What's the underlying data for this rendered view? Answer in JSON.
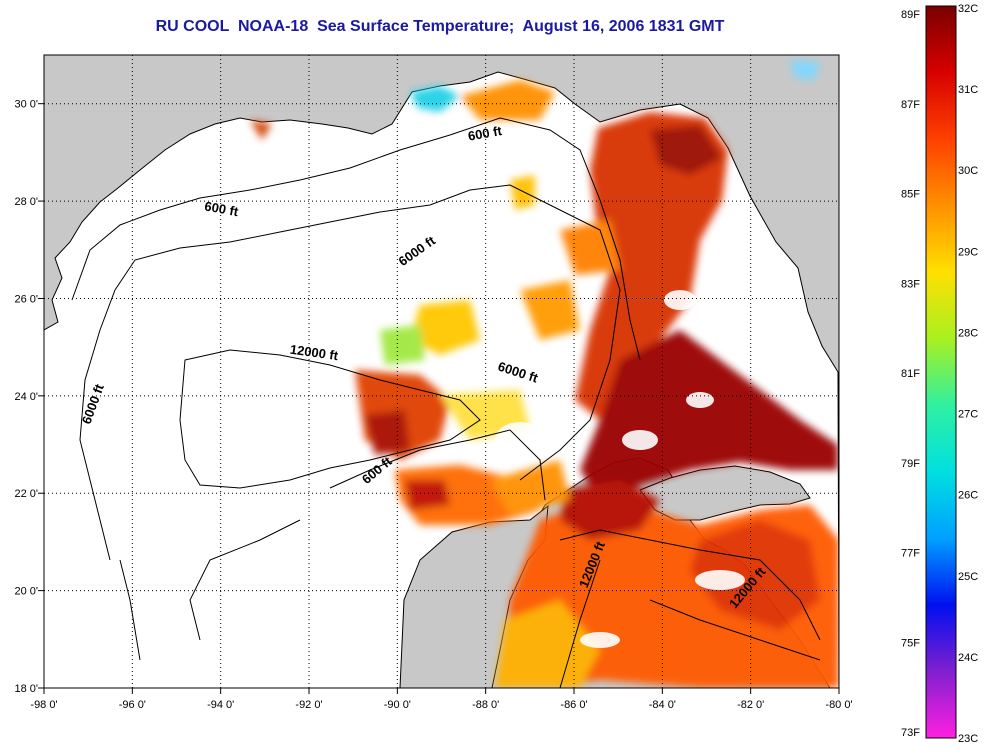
{
  "title": "RU COOL  NOAA-18  Sea Surface Temperature;  August 16, 2006 1831 GMT",
  "map": {
    "lon_range": [
      -98,
      -80
    ],
    "lat_range": [
      18,
      31
    ],
    "lon_ticks": [
      {
        "value": -98,
        "label": "-98 0'"
      },
      {
        "value": -96,
        "label": "-96 0'"
      },
      {
        "value": -94,
        "label": "-94 0'"
      },
      {
        "value": -92,
        "label": "-92 0'"
      },
      {
        "value": -90,
        "label": "-90 0'"
      },
      {
        "value": -88,
        "label": "-88 0'"
      },
      {
        "value": -86,
        "label": "-86 0'"
      },
      {
        "value": -84,
        "label": "-84 0'"
      },
      {
        "value": -82,
        "label": "-82 0'"
      },
      {
        "value": -80,
        "label": "-80 0'"
      }
    ],
    "lat_ticks": [
      {
        "value": 30,
        "label": "30 0'"
      },
      {
        "value": 28,
        "label": "28 0'"
      },
      {
        "value": 26,
        "label": "26 0'"
      },
      {
        "value": 24,
        "label": "24 0'"
      },
      {
        "value": 22,
        "label": "22 0'"
      },
      {
        "value": 20,
        "label": "20 0'"
      },
      {
        "value": 18,
        "label": "18 0'"
      }
    ],
    "grid": "dotted",
    "colors": {
      "land": "#c8c8c8",
      "no_data": "#ffffff",
      "frame": "#000000"
    },
    "contour_labels": [
      {
        "text": "600 ft",
        "lon": -94.0,
        "lat": 27.75,
        "angle": 10
      },
      {
        "text": "600 ft",
        "lon": -88.0,
        "lat": 29.3,
        "angle": -10
      },
      {
        "text": "6000 ft",
        "lon": -89.5,
        "lat": 26.9,
        "angle": -35
      },
      {
        "text": "12000 ft",
        "lon": -91.9,
        "lat": 24.8,
        "angle": 8
      },
      {
        "text": "6000 ft",
        "lon": -96.8,
        "lat": 23.8,
        "angle": -70
      },
      {
        "text": "6000 ft",
        "lon": -87.3,
        "lat": 24.4,
        "angle": 18
      },
      {
        "text": "600 ft",
        "lon": -90.4,
        "lat": 22.4,
        "angle": -40
      },
      {
        "text": "12000 ft",
        "lon": -85.5,
        "lat": 20.5,
        "angle": -68
      },
      {
        "text": "12000 ft",
        "lon": -82.0,
        "lat": 20.0,
        "angle": -50
      }
    ]
  },
  "colorbar": {
    "f_labels": [
      "89F",
      "87F",
      "85F",
      "83F",
      "81F",
      "79F",
      "77F",
      "75F",
      "73F"
    ],
    "c_labels": [
      "32C",
      "31C",
      "30C",
      "29C",
      "28C",
      "27C",
      "26C",
      "25C",
      "24C",
      "23C"
    ],
    "stops": [
      "#7a0000",
      "#d80000",
      "#ff4000",
      "#ff9000",
      "#ffe000",
      "#a8f020",
      "#30f0a0",
      "#00e0e0",
      "#00a0ff",
      "#0010f0",
      "#8020d0",
      "#ff20e0"
    ]
  }
}
